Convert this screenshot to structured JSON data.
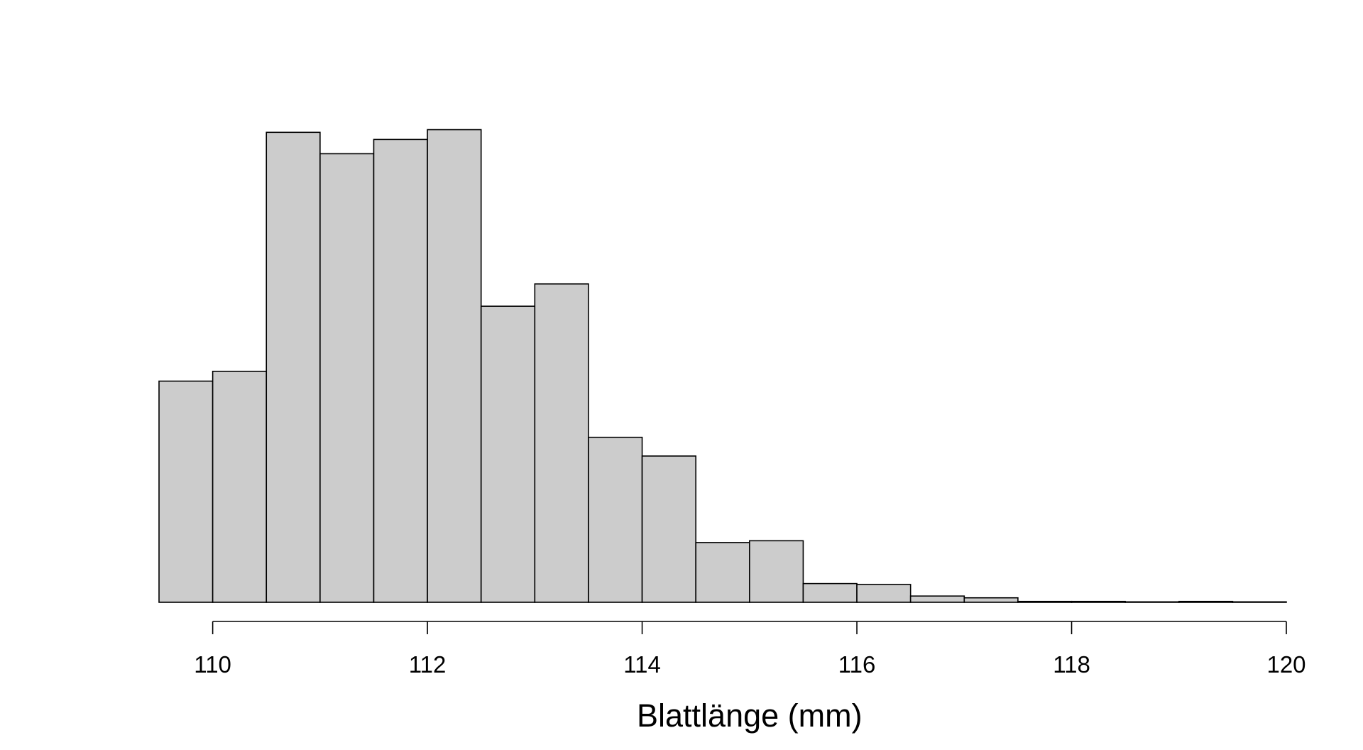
{
  "chart_data": {
    "type": "bar",
    "subtype": "histogram",
    "xlabel": "Blattlänge (mm)",
    "ylabel": "",
    "title": "",
    "bin_width": 0.5,
    "bin_edges": [
      109.5,
      110,
      110.5,
      111,
      111.5,
      112,
      112.5,
      113,
      113.5,
      114,
      114.5,
      115,
      115.5,
      116,
      116.5,
      117,
      117.5,
      118,
      118.5,
      119,
      119.5,
      120
    ],
    "values": [
      248,
      259,
      527,
      503,
      519,
      530,
      332,
      357,
      185,
      164,
      67,
      69,
      21,
      20,
      7,
      5,
      1,
      1,
      0.5,
      1,
      0.5
    ],
    "xlim": [
      109.5,
      120
    ],
    "ylim": [
      0,
      540
    ],
    "x_ticks": [
      110,
      112,
      114,
      116,
      118,
      120
    ],
    "x_tick_labels": [
      "110",
      "112",
      "114",
      "116",
      "118",
      "120"
    ],
    "y_axis_shown": false,
    "grid": false,
    "legend": "none",
    "bar_fill": "#cccccc",
    "bar_stroke": "#000000"
  }
}
